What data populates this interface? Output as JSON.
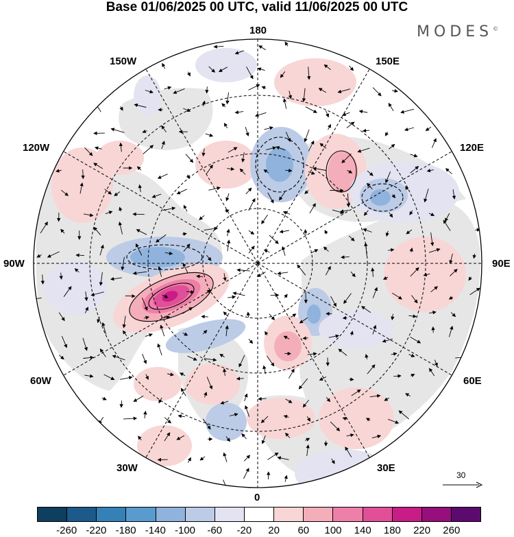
{
  "title": "Base 01/06/2025 00 UTC, valid 11/06/2025 00 UTC",
  "brand": "MODES",
  "brand_mark": "©",
  "longitude_labels": {
    "top": "180",
    "bottom": "0",
    "left": "90W",
    "right": "90E",
    "upper_left_1": "150W",
    "upper_left_2": "120W",
    "upper_right_1": "150E",
    "upper_right_2": "120E",
    "lower_left_1": "60W",
    "lower_left_2": "30W",
    "lower_right_1": "60E",
    "lower_right_2": "30E"
  },
  "reference_vector": "30",
  "colorbar": {
    "colors": [
      "#0f3f5f",
      "#1c5a8c",
      "#3680b8",
      "#5a9bcf",
      "#8fb3dc",
      "#bccbe6",
      "#e3e3f1",
      "#ffffff",
      "#f8d6d6",
      "#f4aeba",
      "#ee7fa8",
      "#e14f98",
      "#c81c86",
      "#960f7c",
      "#5c0a6e"
    ],
    "ticks": [
      "-260",
      "-220",
      "-180",
      "-140",
      "-100",
      "-60",
      "-20",
      "20",
      "60",
      "100",
      "140",
      "180",
      "220",
      "260"
    ]
  },
  "field_colors": {
    "land": "#e6e6e6",
    "ocean": "#ffffff",
    "neg_weak": "#e3e3f1",
    "neg_mod": "#bccbe6",
    "neg_strong": "#8fb3dc",
    "neg_core": "#5a9bcf",
    "pos_weak": "#f8d6d6",
    "pos_mod": "#f4aeba",
    "pos_strong": "#ee7fa8",
    "pos_core": "#e14f98",
    "pos_peak": "#c81c86"
  }
}
